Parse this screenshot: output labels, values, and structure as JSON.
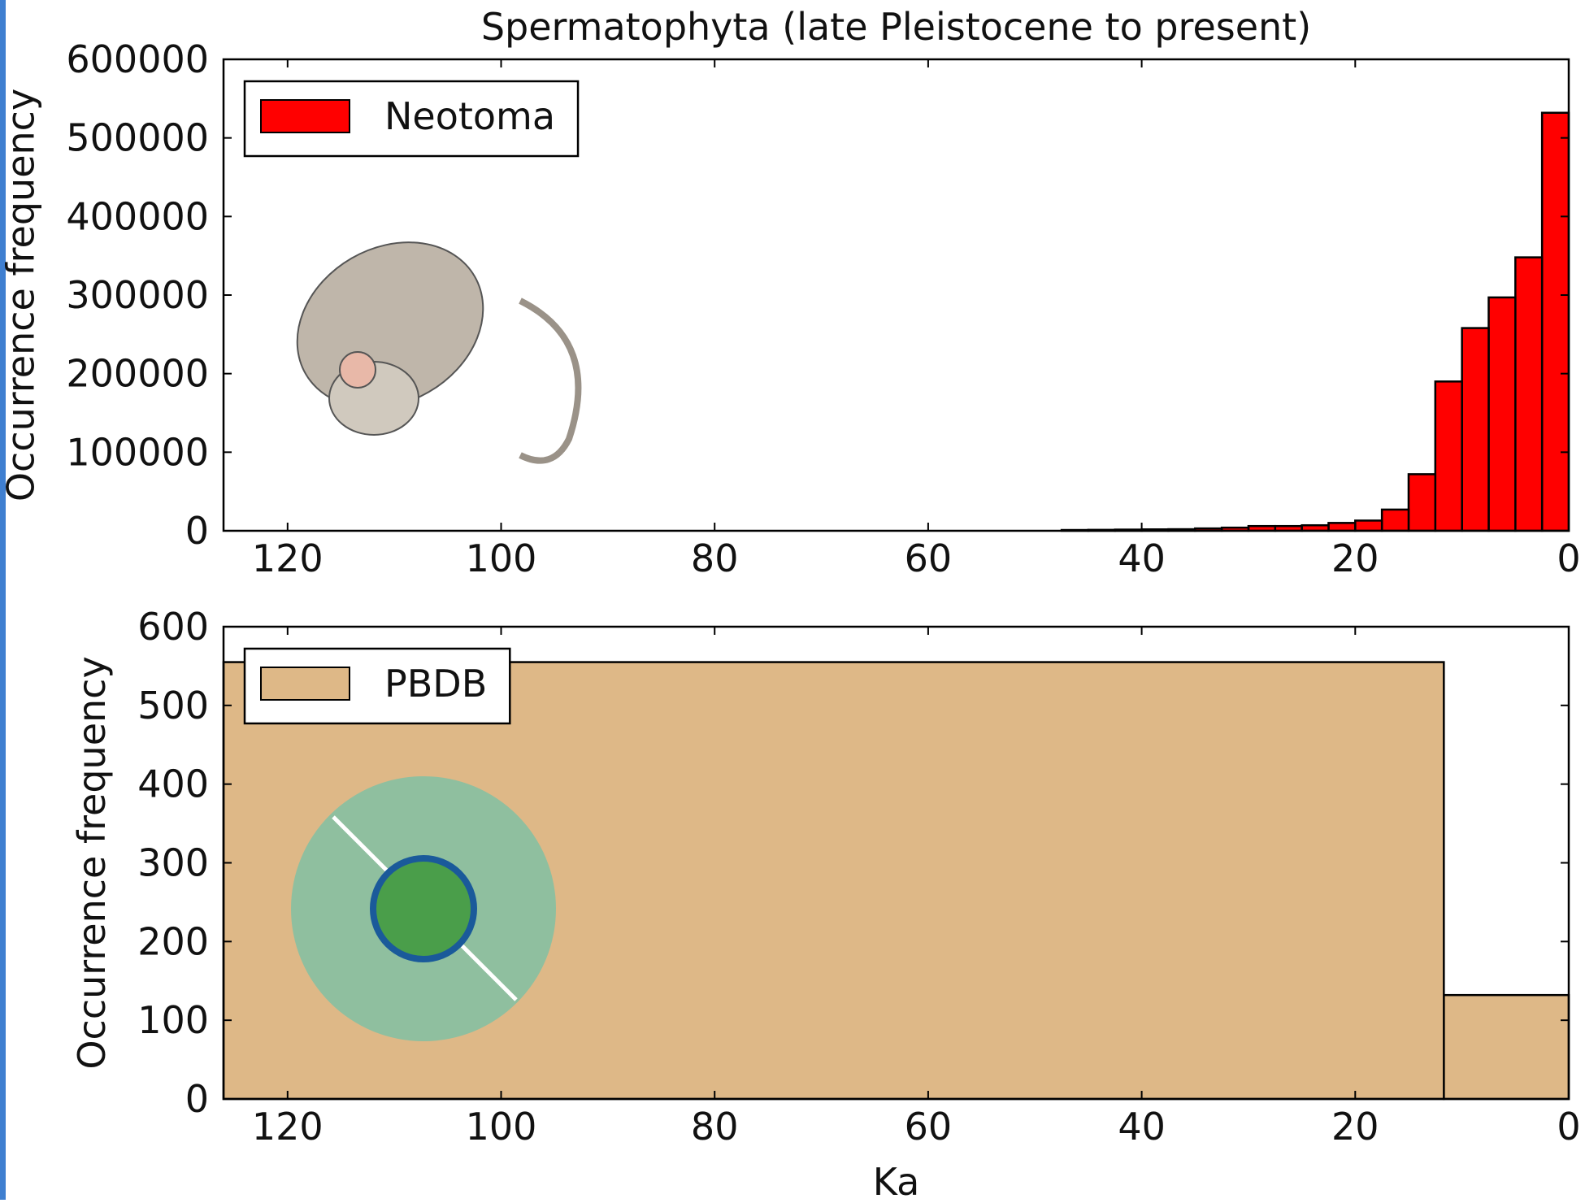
{
  "chart_data": [
    {
      "type": "histogram",
      "title": "Spermatophyta (late Pleistocene to present)",
      "ylabel": "Occurrence frequency",
      "bins": [
        0,
        2.5,
        5,
        7.5,
        10,
        12.5,
        15,
        17.5,
        20,
        22.5,
        25,
        27.5,
        30,
        32.5,
        35,
        37.5,
        40,
        42.5,
        45,
        47.5
      ],
      "series": [
        {
          "name": "Neotoma",
          "color": "#ff0000",
          "values": [
            532000,
            348000,
            297000,
            258000,
            190000,
            72000,
            27000,
            13000,
            10000,
            7000,
            6000,
            6000,
            4000,
            3000,
            2000,
            1800,
            1500,
            1200,
            1000
          ]
        }
      ],
      "xlim": [
        126,
        0
      ],
      "xticks": [
        120,
        100,
        80,
        60,
        40,
        20,
        0
      ],
      "ylim": [
        0,
        600000
      ],
      "yticks": [
        0,
        100000,
        200000,
        300000,
        400000,
        500000,
        600000
      ],
      "legend": "upper left"
    },
    {
      "type": "histogram",
      "ylabel": "Occurrence frequency",
      "xlabel": "Ka",
      "bins": [
        0,
        11.7,
        126
      ],
      "series": [
        {
          "name": "PBDB",
          "color": "#deb887",
          "values": [
            132,
            555
          ]
        }
      ],
      "xlim": [
        126,
        0
      ],
      "xticks": [
        120,
        100,
        80,
        60,
        40,
        20,
        0
      ],
      "ylim": [
        0,
        600
      ],
      "yticks": [
        0,
        100,
        200,
        300,
        400,
        500,
        600
      ],
      "legend": "upper left"
    }
  ]
}
